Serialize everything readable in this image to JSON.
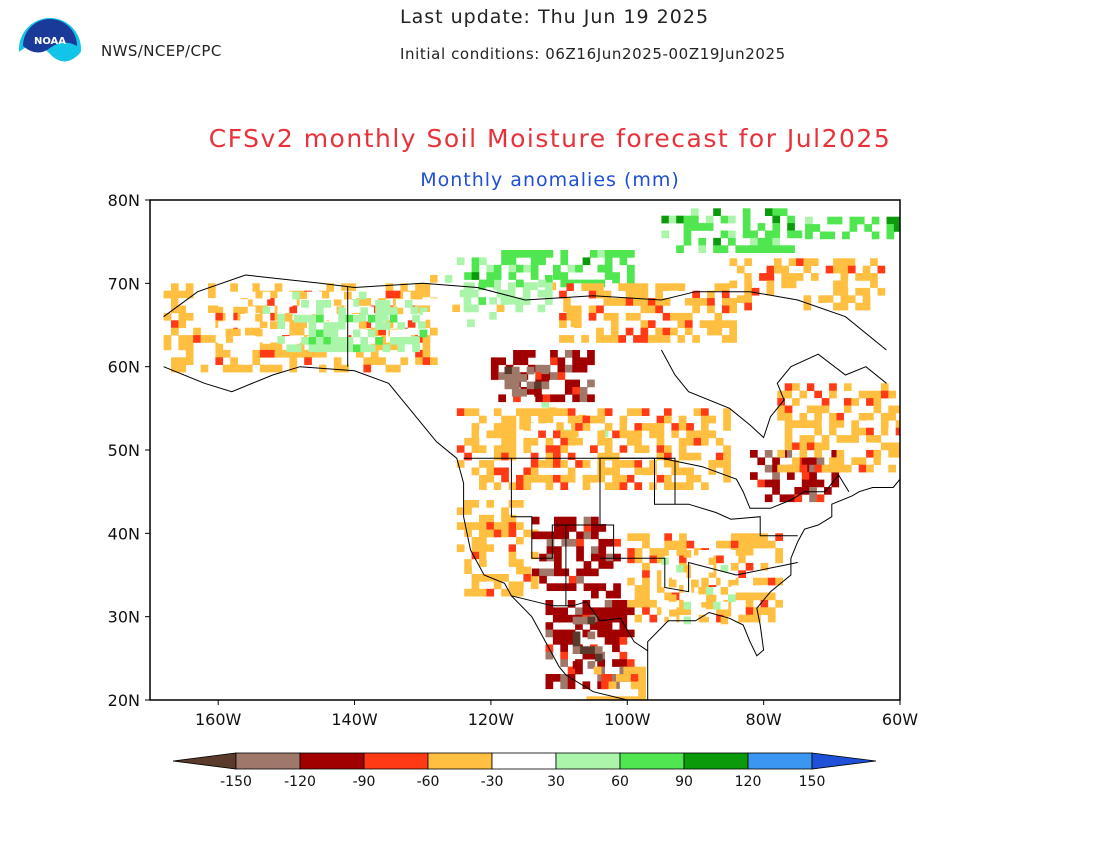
{
  "header": {
    "logo_text": "NOAA",
    "agency": "NWS/NCEP/CPC",
    "last_update": "Last update: Thu Jun 19 2025",
    "initial_conditions": "Initial conditions: 06Z16Jun2025-00Z19Jun2025"
  },
  "title": "CFSv2 monthly Soil Moisture forecast for Jul2025",
  "subtitle": "Monthly anomalies (mm)",
  "map": {
    "projection": "lat-lon",
    "lon_range": [
      -170,
      -60
    ],
    "lat_range": [
      20,
      80
    ],
    "x_ticks": [
      {
        "value": -160,
        "label": "160W"
      },
      {
        "value": -140,
        "label": "140W"
      },
      {
        "value": -120,
        "label": "120W"
      },
      {
        "value": -100,
        "label": "100W"
      },
      {
        "value": -80,
        "label": "80W"
      },
      {
        "value": -60,
        "label": "60W"
      }
    ],
    "y_ticks": [
      {
        "value": 20,
        "label": "20N"
      },
      {
        "value": 30,
        "label": "30N"
      },
      {
        "value": 40,
        "label": "40N"
      },
      {
        "value": 50,
        "label": "50N"
      },
      {
        "value": 60,
        "label": "60N"
      },
      {
        "value": 70,
        "label": "70N"
      },
      {
        "value": 80,
        "label": "80N"
      }
    ],
    "anomaly_regions": [
      {
        "category": 4,
        "lon": [
          -168,
          -128
        ],
        "lat": [
          60,
          70
        ]
      },
      {
        "category": 5,
        "lon": [
          -160,
          -130
        ],
        "lat": [
          63,
          69
        ]
      },
      {
        "category": 6,
        "lon": [
          -150,
          -130
        ],
        "lat": [
          62,
          68
        ]
      },
      {
        "category": 5,
        "lon": [
          -130,
          -108
        ],
        "lat": [
          65,
          71
        ]
      },
      {
        "category": 6,
        "lon": [
          -124,
          -112
        ],
        "lat": [
          67,
          71
        ]
      },
      {
        "category": 7,
        "lon": [
          -125,
          -100
        ],
        "lat": [
          70,
          74
        ]
      },
      {
        "category": 7,
        "lon": [
          -95,
          -75
        ],
        "lat": [
          74,
          79
        ]
      },
      {
        "category": 7,
        "lon": [
          -75,
          -60
        ],
        "lat": [
          76,
          78
        ]
      },
      {
        "category": 4,
        "lon": [
          -110,
          -85
        ],
        "lat": [
          63,
          70
        ]
      },
      {
        "category": 4,
        "lon": [
          -85,
          -63
        ],
        "lat": [
          67,
          73
        ]
      },
      {
        "category": 5,
        "lon": [
          -118,
          -103
        ],
        "lat": [
          52,
          56
        ]
      },
      {
        "category": 4,
        "lon": [
          -125,
          -85
        ],
        "lat": [
          46,
          55
        ]
      },
      {
        "category": 2,
        "lon": [
          -120,
          -105
        ],
        "lat": [
          56,
          62
        ]
      },
      {
        "category": 1,
        "lon": [
          -118,
          -112
        ],
        "lat": [
          57,
          60
        ]
      },
      {
        "category": 2,
        "lon": [
          -82,
          -70
        ],
        "lat": [
          44,
          50
        ]
      },
      {
        "category": 4,
        "lon": [
          -78,
          -60
        ],
        "lat": [
          48,
          58
        ]
      },
      {
        "category": 4,
        "lon": [
          -125,
          -114
        ],
        "lat": [
          33,
          44
        ]
      },
      {
        "category": 4,
        "lon": [
          -100,
          -78
        ],
        "lat": [
          30,
          40
        ]
      },
      {
        "category": 5,
        "lon": [
          -95,
          -85
        ],
        "lat": [
          30,
          38
        ]
      },
      {
        "category": 2,
        "lon": [
          -114,
          -102
        ],
        "lat": [
          33,
          42
        ]
      },
      {
        "category": 2,
        "lon": [
          -112,
          -100
        ],
        "lat": [
          22,
          32
        ]
      },
      {
        "category": 1,
        "lon": [
          -108,
          -104
        ],
        "lat": [
          24,
          30
        ]
      },
      {
        "category": 4,
        "lon": [
          -106,
          -98
        ],
        "lat": [
          20,
          24
        ]
      }
    ]
  },
  "colorbar": {
    "levels": [
      "-150",
      "-120",
      "-90",
      "-60",
      "-30",
      "30",
      "60",
      "90",
      "120",
      "150"
    ],
    "colors": [
      "#5a3a2a",
      "#a0786a",
      "#a00000",
      "#ff3a14",
      "#ffbf40",
      "#ffffff",
      "#aaf5aa",
      "#50e650",
      "#0a9a0a",
      "#3a96f0",
      "#1e50d8"
    ]
  }
}
